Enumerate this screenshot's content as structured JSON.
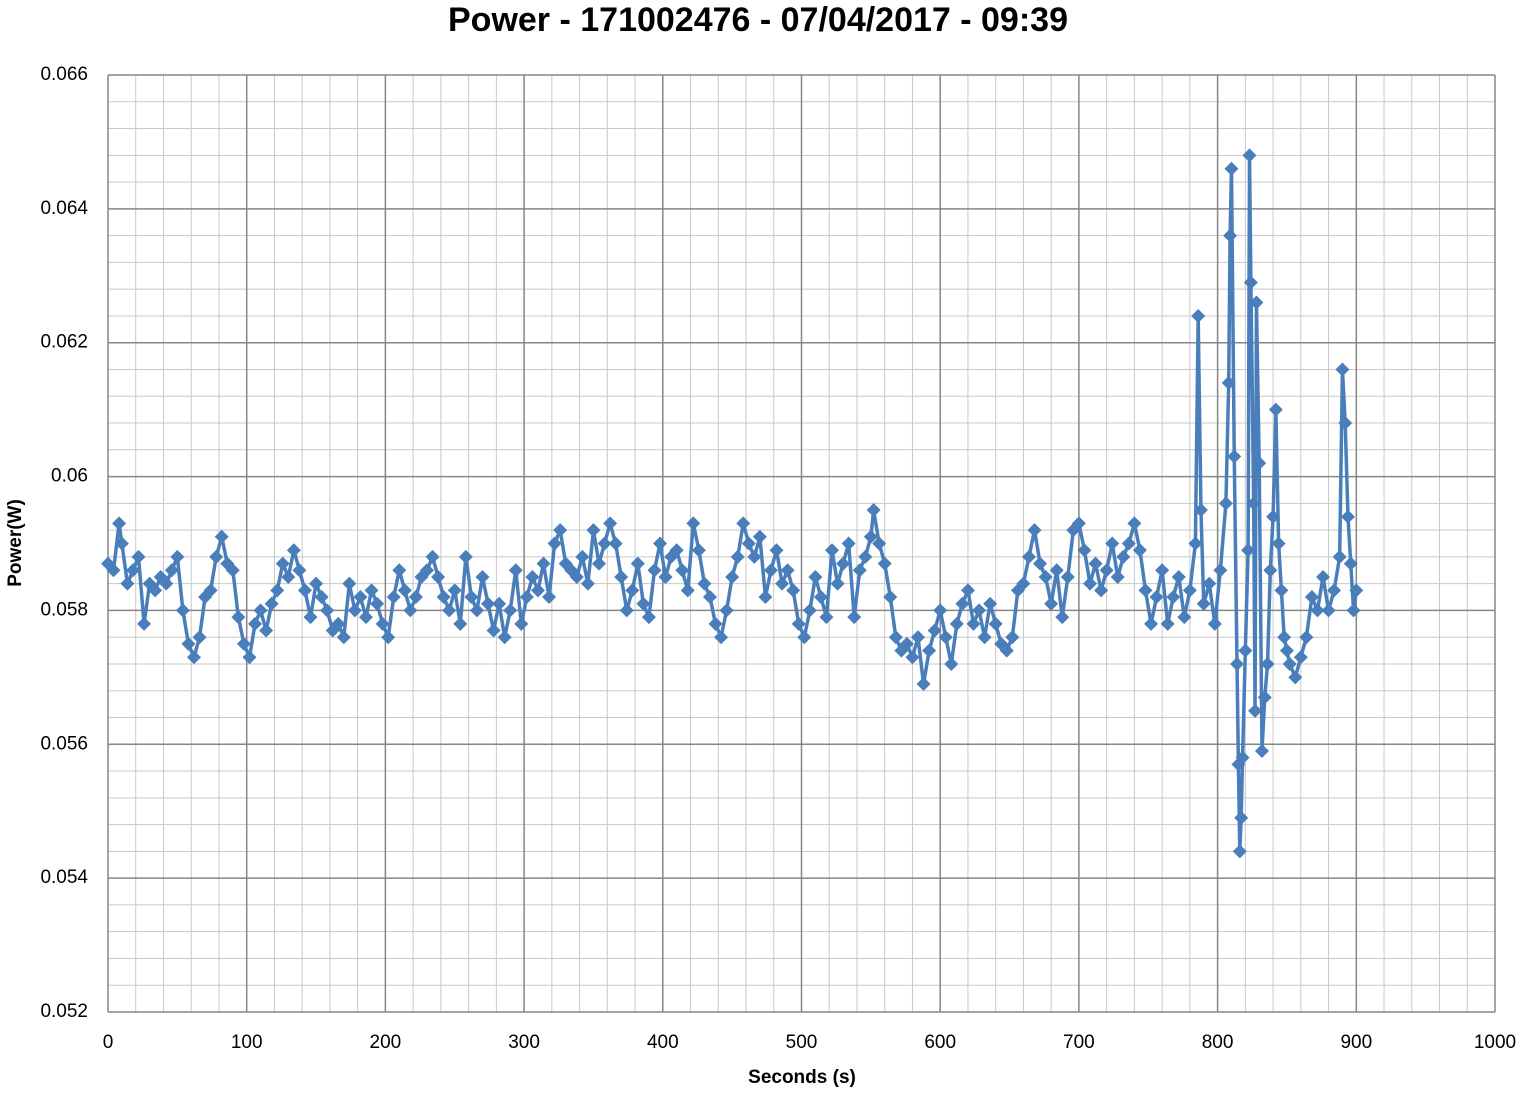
{
  "chart_data": {
    "type": "line",
    "title": "Power - 171002476 - 07/04/2017 - 09:39",
    "x_label": "Seconds (s)",
    "y_label": "Power(W)",
    "xlim": [
      0,
      1000
    ],
    "xticks": [
      0,
      100,
      200,
      300,
      400,
      500,
      600,
      700,
      800,
      900,
      1000
    ],
    "ylim": [
      0.052,
      0.066
    ],
    "yticks": [
      0.052,
      0.054,
      0.056,
      0.058,
      0.06,
      0.062,
      0.064,
      0.066
    ],
    "grid": true,
    "minor_grid": true,
    "x": [
      0,
      4,
      8,
      10,
      14,
      18,
      22,
      26,
      30,
      34,
      38,
      42,
      46,
      50,
      54,
      58,
      62,
      66,
      70,
      74,
      78,
      82,
      86,
      90,
      94,
      98,
      102,
      106,
      110,
      114,
      118,
      122,
      126,
      130,
      134,
      138,
      142,
      146,
      150,
      154,
      158,
      162,
      166,
      170,
      174,
      178,
      182,
      186,
      190,
      194,
      198,
      202,
      206,
      210,
      214,
      218,
      222,
      226,
      230,
      234,
      238,
      242,
      246,
      250,
      254,
      258,
      262,
      266,
      270,
      274,
      278,
      282,
      286,
      290,
      294,
      298,
      302,
      306,
      310,
      314,
      318,
      322,
      326,
      330,
      334,
      338,
      342,
      346,
      350,
      354,
      358,
      362,
      366,
      370,
      374,
      378,
      382,
      386,
      390,
      394,
      398,
      402,
      406,
      410,
      414,
      418,
      422,
      426,
      430,
      434,
      438,
      442,
      446,
      450,
      454,
      458,
      462,
      466,
      470,
      474,
      478,
      482,
      486,
      490,
      494,
      498,
      502,
      506,
      510,
      514,
      518,
      522,
      526,
      530,
      534,
      538,
      542,
      546,
      550,
      552,
      556,
      560,
      564,
      568,
      572,
      576,
      580,
      584,
      588,
      592,
      596,
      600,
      604,
      608,
      612,
      616,
      620,
      624,
      628,
      632,
      636,
      640,
      644,
      648,
      652,
      656,
      660,
      664,
      668,
      672,
      676,
      680,
      684,
      688,
      692,
      696,
      700,
      704,
      708,
      712,
      716,
      720,
      724,
      728,
      732,
      736,
      740,
      744,
      748,
      752,
      756,
      760,
      764,
      768,
      772,
      776,
      780,
      784,
      786,
      788,
      790,
      794,
      798,
      802,
      806,
      808,
      809,
      810,
      812,
      814,
      815,
      816,
      817,
      818,
      820,
      822,
      823,
      824,
      826,
      827,
      828,
      830,
      832,
      834,
      836,
      838,
      840,
      842,
      844,
      846,
      848,
      850,
      852,
      856,
      860,
      864,
      868,
      872,
      876,
      880,
      884,
      888,
      890,
      892,
      894,
      896,
      898,
      900
    ],
    "series": [
      {
        "name": "Power",
        "color": "#4a7ebb",
        "values": [
          0.0587,
          0.0586,
          0.0593,
          0.059,
          0.0584,
          0.0586,
          0.0588,
          0.0578,
          0.0584,
          0.0583,
          0.0585,
          0.0584,
          0.0586,
          0.0588,
          0.058,
          0.0575,
          0.0573,
          0.0576,
          0.0582,
          0.0583,
          0.0588,
          0.0591,
          0.0587,
          0.0586,
          0.0579,
          0.0575,
          0.0573,
          0.0578,
          0.058,
          0.0577,
          0.0581,
          0.0583,
          0.0587,
          0.0585,
          0.0589,
          0.0586,
          0.0583,
          0.0579,
          0.0584,
          0.0582,
          0.058,
          0.0577,
          0.0578,
          0.0576,
          0.0584,
          0.058,
          0.0582,
          0.0579,
          0.0583,
          0.0581,
          0.0578,
          0.0576,
          0.0582,
          0.0586,
          0.0583,
          0.058,
          0.0582,
          0.0585,
          0.0586,
          0.0588,
          0.0585,
          0.0582,
          0.058,
          0.0583,
          0.0578,
          0.0588,
          0.0582,
          0.058,
          0.0585,
          0.0581,
          0.0577,
          0.0581,
          0.0576,
          0.058,
          0.0586,
          0.0578,
          0.0582,
          0.0585,
          0.0583,
          0.0587,
          0.0582,
          0.059,
          0.0592,
          0.0587,
          0.0586,
          0.0585,
          0.0588,
          0.0584,
          0.0592,
          0.0587,
          0.059,
          0.0593,
          0.059,
          0.0585,
          0.058,
          0.0583,
          0.0587,
          0.0581,
          0.0579,
          0.0586,
          0.059,
          0.0585,
          0.0588,
          0.0589,
          0.0586,
          0.0583,
          0.0593,
          0.0589,
          0.0584,
          0.0582,
          0.0578,
          0.0576,
          0.058,
          0.0585,
          0.0588,
          0.0593,
          0.059,
          0.0588,
          0.0591,
          0.0582,
          0.0586,
          0.0589,
          0.0584,
          0.0586,
          0.0583,
          0.0578,
          0.0576,
          0.058,
          0.0585,
          0.0582,
          0.0579,
          0.0589,
          0.0584,
          0.0587,
          0.059,
          0.0579,
          0.0586,
          0.0588,
          0.0591,
          0.0595,
          0.059,
          0.0587,
          0.0582,
          0.0576,
          0.0574,
          0.0575,
          0.0573,
          0.0576,
          0.0569,
          0.0574,
          0.0577,
          0.058,
          0.0576,
          0.0572,
          0.0578,
          0.0581,
          0.0583,
          0.0578,
          0.058,
          0.0576,
          0.0581,
          0.0578,
          0.0575,
          0.0574,
          0.0576,
          0.0583,
          0.0584,
          0.0588,
          0.0592,
          0.0587,
          0.0585,
          0.0581,
          0.0586,
          0.0579,
          0.0585,
          0.0592,
          0.0593,
          0.0589,
          0.0584,
          0.0587,
          0.0583,
          0.0586,
          0.059,
          0.0585,
          0.0588,
          0.059,
          0.0593,
          0.0589,
          0.0583,
          0.0578,
          0.0582,
          0.0586,
          0.0578,
          0.0582,
          0.0585,
          0.0579,
          0.0583,
          0.059,
          0.0624,
          0.0595,
          0.0581,
          0.0584,
          0.0578,
          0.0586,
          0.0596,
          0.0614,
          0.0636,
          0.0646,
          0.0603,
          0.0572,
          0.0557,
          0.0544,
          0.0549,
          0.0558,
          0.0574,
          0.0589,
          0.0648,
          0.0629,
          0.0596,
          0.0565,
          0.0626,
          0.0602,
          0.0559,
          0.0567,
          0.0572,
          0.0586,
          0.0594,
          0.061,
          0.059,
          0.0583,
          0.0576,
          0.0574,
          0.0572,
          0.057,
          0.0573,
          0.0576,
          0.0582,
          0.058,
          0.0585,
          0.058,
          0.0583,
          0.0588,
          0.0616,
          0.0608,
          0.0594,
          0.0587,
          0.058,
          0.0583
        ]
      }
    ]
  }
}
